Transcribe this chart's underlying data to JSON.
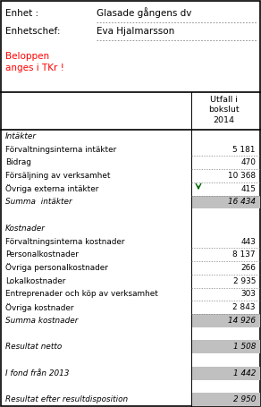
{
  "title_unit": "Enhet :",
  "title_unit_val": "Glasade gångens dv",
  "title_chef": "Enhetschef:",
  "title_chef_val": "Eva Hjalmarsson",
  "col_header": "Utfall i\nbokslut\n2014",
  "rows": [
    {
      "label": "Intäkter",
      "value": null,
      "italic": true,
      "shaded": false,
      "dotted": false,
      "gap": false,
      "arrow": false
    },
    {
      "label": "Förvaltningsinterna intäkter",
      "value": "5 181",
      "italic": false,
      "shaded": false,
      "dotted": true,
      "gap": false,
      "arrow": false
    },
    {
      "label": "Bidrag",
      "value": "470",
      "italic": false,
      "shaded": false,
      "dotted": true,
      "gap": false,
      "arrow": false
    },
    {
      "label": "Försäljning av verksamhet",
      "value": "10 368",
      "italic": false,
      "shaded": false,
      "dotted": true,
      "gap": false,
      "arrow": false
    },
    {
      "label": "Övriga externa intäkter",
      "value": "415",
      "italic": false,
      "shaded": false,
      "dotted": true,
      "gap": false,
      "arrow": true
    },
    {
      "label": "Summa  intäkter",
      "value": "16 434",
      "italic": true,
      "shaded": true,
      "dotted": false,
      "gap": false,
      "arrow": false
    },
    {
      "label": "",
      "value": null,
      "italic": false,
      "shaded": false,
      "dotted": false,
      "gap": true,
      "arrow": false
    },
    {
      "label": "Kostnader",
      "value": null,
      "italic": true,
      "shaded": false,
      "dotted": false,
      "gap": false,
      "arrow": false
    },
    {
      "label": "Förvaltningsinterna kostnader",
      "value": "443",
      "italic": false,
      "shaded": false,
      "dotted": true,
      "gap": false,
      "arrow": false
    },
    {
      "label": "Personalkostnader",
      "value": "8 137",
      "italic": false,
      "shaded": false,
      "dotted": true,
      "gap": false,
      "arrow": false
    },
    {
      "label": "Övriga personalkostnader",
      "value": "266",
      "italic": false,
      "shaded": false,
      "dotted": true,
      "gap": false,
      "arrow": false
    },
    {
      "label": "Lokalkostnader",
      "value": "2 935",
      "italic": false,
      "shaded": false,
      "dotted": true,
      "gap": false,
      "arrow": false
    },
    {
      "label": "Entreprenader och köp av verksamhet",
      "value": "303",
      "italic": false,
      "shaded": false,
      "dotted": true,
      "gap": false,
      "arrow": false
    },
    {
      "label": "Övriga kostnader",
      "value": "2 843",
      "italic": false,
      "shaded": false,
      "dotted": true,
      "gap": false,
      "arrow": false
    },
    {
      "label": "Summa kostnader",
      "value": "14 926",
      "italic": true,
      "shaded": true,
      "dotted": false,
      "gap": false,
      "arrow": false
    },
    {
      "label": "",
      "value": null,
      "italic": false,
      "shaded": false,
      "dotted": false,
      "gap": true,
      "arrow": false
    },
    {
      "label": "Resultat netto",
      "value": "1 508",
      "italic": true,
      "shaded": true,
      "dotted": false,
      "gap": false,
      "arrow": false
    },
    {
      "label": "",
      "value": null,
      "italic": false,
      "shaded": false,
      "dotted": false,
      "gap": true,
      "arrow": false
    },
    {
      "label": "I fond från 2013",
      "value": "1 442",
      "italic": true,
      "shaded": true,
      "dotted": false,
      "gap": false,
      "arrow": false
    },
    {
      "label": "",
      "value": null,
      "italic": false,
      "shaded": false,
      "dotted": false,
      "gap": true,
      "arrow": false
    },
    {
      "label": "Resultat efter resultdisposition",
      "value": "2 950",
      "italic": true,
      "shaded": true,
      "dotted": false,
      "gap": false,
      "arrow": false
    }
  ],
  "text_color": "#000000",
  "red_color": "#ff0000",
  "green_color": "#006400",
  "border_color": "#000000",
  "shaded_color": "#c0c0c0",
  "fig_bg": "#ffffff",
  "fig_w": 2.92,
  "fig_h": 4.55,
  "dpi": 100
}
